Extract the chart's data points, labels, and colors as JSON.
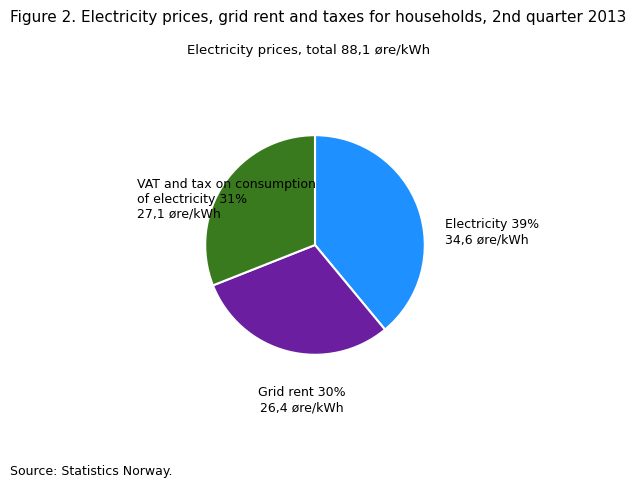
{
  "title": "Figure 2. Electricity prices, grid rent and taxes for households, 2nd quarter 2013",
  "subtitle": "Electricity prices, total 88,1 øre/kWh",
  "source": "Source: Statistics Norway.",
  "slices": [
    39,
    30,
    31
  ],
  "colors": [
    "#1e90ff",
    "#6b1fa0",
    "#3a7a1e"
  ],
  "label_electricity": "Electricity 39%\n34,6 øre/kWh",
  "label_gridrent": "Grid rent 30%\n26,4 øre/kWh",
  "label_vat": "VAT and tax on consumption\nof electricity 31%\n27,1 øre/kWh",
  "startangle": 90,
  "background_color": "#ffffff",
  "title_fontsize": 11,
  "subtitle_fontsize": 9.5,
  "label_fontsize": 9,
  "source_fontsize": 9
}
